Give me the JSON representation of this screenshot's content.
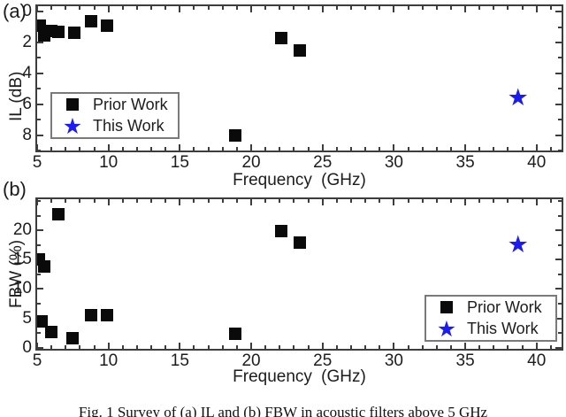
{
  "figure": {
    "panel_a_label": "(a)",
    "panel_b_label": "(b)",
    "caption": "Fig. 1 Survey of (a) IL and (b) FBW in acoustic filters above 5 GHz"
  },
  "legend": {
    "prior_label": "Prior Work",
    "this_label": "This Work"
  },
  "icons": {
    "star_glyph": "★"
  },
  "colors": {
    "prior_work": "#0a0a0a",
    "this_work": "#1c1cf0",
    "frame": "#3d3d3d",
    "text": "#1c1c1c",
    "legend_border": "#7a7a7a"
  },
  "chart_data": [
    {
      "type": "scatter",
      "panel": "a",
      "title": "",
      "xlabel": "Frequency (GHz)",
      "ylabel": "IL (dB)",
      "xlim": [
        5,
        41.75
      ],
      "ylim": [
        -0.35,
        9.0
      ],
      "y_inverted": true,
      "grid": false,
      "x_major_ticks": [
        5,
        10,
        15,
        20,
        25,
        30,
        35,
        40
      ],
      "x_minor_step": 1,
      "y_major_ticks": [
        0,
        2,
        4,
        6,
        8
      ],
      "y_minor_step": 1,
      "legend_position": "middle-left",
      "series": [
        {
          "name": "Prior Work",
          "marker": "square",
          "points": [
            [
              5.2,
              0.9
            ],
            [
              5.5,
              1.55
            ],
            [
              6.0,
              1.25
            ],
            [
              6.5,
              1.3
            ],
            [
              7.6,
              1.35
            ],
            [
              8.8,
              0.6
            ],
            [
              9.9,
              0.9
            ],
            [
              18.9,
              8.0
            ],
            [
              22.1,
              1.7
            ],
            [
              23.4,
              2.5
            ]
          ]
        },
        {
          "name": "This Work",
          "marker": "star",
          "points": [
            [
              38.7,
              5.7
            ]
          ]
        }
      ]
    },
    {
      "type": "scatter",
      "panel": "b",
      "title": "",
      "xlabel": "Frequency (GHz)",
      "ylabel": "FBW (%)",
      "xlim": [
        5,
        41.75
      ],
      "ylim": [
        -0.2,
        25.3
      ],
      "y_inverted": false,
      "grid": false,
      "x_major_ticks": [
        5,
        10,
        15,
        20,
        25,
        30,
        35,
        40
      ],
      "x_minor_step": 1,
      "y_major_ticks": [
        0,
        5,
        10,
        15,
        20
      ],
      "y_minor_step": 2.5,
      "legend_position": "bottom-right",
      "series": [
        {
          "name": "Prior Work",
          "marker": "square",
          "points": [
            [
              5.1,
              15.1
            ],
            [
              5.3,
              4.5
            ],
            [
              5.5,
              13.8
            ],
            [
              6.0,
              2.6
            ],
            [
              6.5,
              22.8
            ],
            [
              7.5,
              1.6
            ],
            [
              8.8,
              5.5
            ],
            [
              9.9,
              5.6
            ],
            [
              18.9,
              2.3
            ],
            [
              22.1,
              19.8
            ],
            [
              23.4,
              17.9
            ]
          ]
        },
        {
          "name": "This Work",
          "marker": "star",
          "points": [
            [
              38.7,
              17.3
            ]
          ]
        }
      ]
    }
  ]
}
